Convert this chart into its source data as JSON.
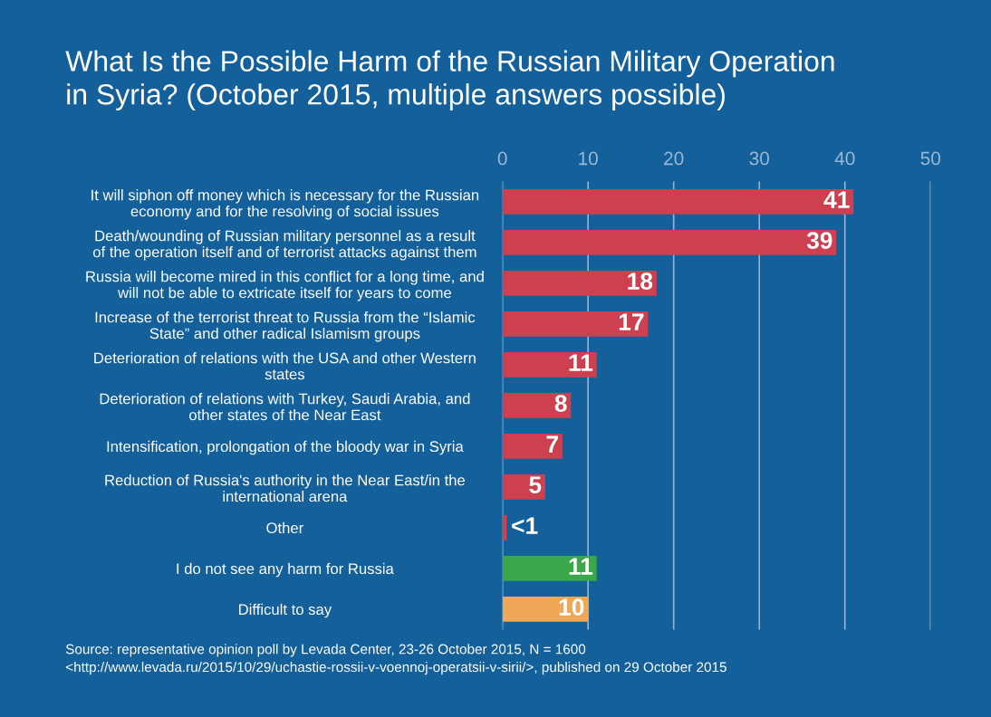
{
  "chart_data": {
    "type": "bar",
    "orientation": "horizontal",
    "title": "What Is the Possible Harm of the Russian Military Operation\nin Syria? (October 2015, multiple answers possible)",
    "categories": [
      "It will siphon off money which is necessary for the Russian\neconomy and for the resolving of social issues",
      "Death/wounding of Russian military personnel as a result\nof the operation itself and of terrorist attacks against them",
      "Russia will become mired in this conflict for a long time, and\nwill not be able to extricate itself for years to come",
      "Increase of the terrorist threat to Russia from the “Islamic\nState” and other radical Islamism groups",
      "Deterioration of relations with the USA and other Western\nstates",
      "Deterioration of relations with Turkey, Saudi Arabia, and\nother states of the Near East",
      "Intensification, prolongation of the bloody war in Syria",
      "Reduction of Russia's authority in the Near East/in the\ninternational arena",
      "Other",
      "I do not see any harm for Russia",
      "Difficult to say"
    ],
    "values": [
      41,
      39,
      18,
      17,
      11,
      8,
      7,
      5,
      0.5,
      11,
      10
    ],
    "value_labels": [
      "41",
      "39",
      "18",
      "17",
      "11",
      "8",
      "7",
      "5",
      "<1",
      "11",
      "10"
    ],
    "colors": [
      "#cc4050",
      "#cc4050",
      "#cc4050",
      "#cc4050",
      "#cc4050",
      "#cc4050",
      "#cc4050",
      "#cc4050",
      "#cc4050",
      "#3aa84a",
      "#eea858"
    ],
    "xlim": [
      0,
      50
    ],
    "xticks": [
      0,
      10,
      20,
      30,
      40,
      50
    ],
    "grid": "x",
    "annotations": [
      "Source: representative opinion poll by Levada Center, 23-26 October 2015, N = 1600\n<http://www.levada.ru/2015/10/29/uchastie-rossii-v-voennoj-operatsii-v-sirii/>, published on 29 October 2015"
    ]
  }
}
